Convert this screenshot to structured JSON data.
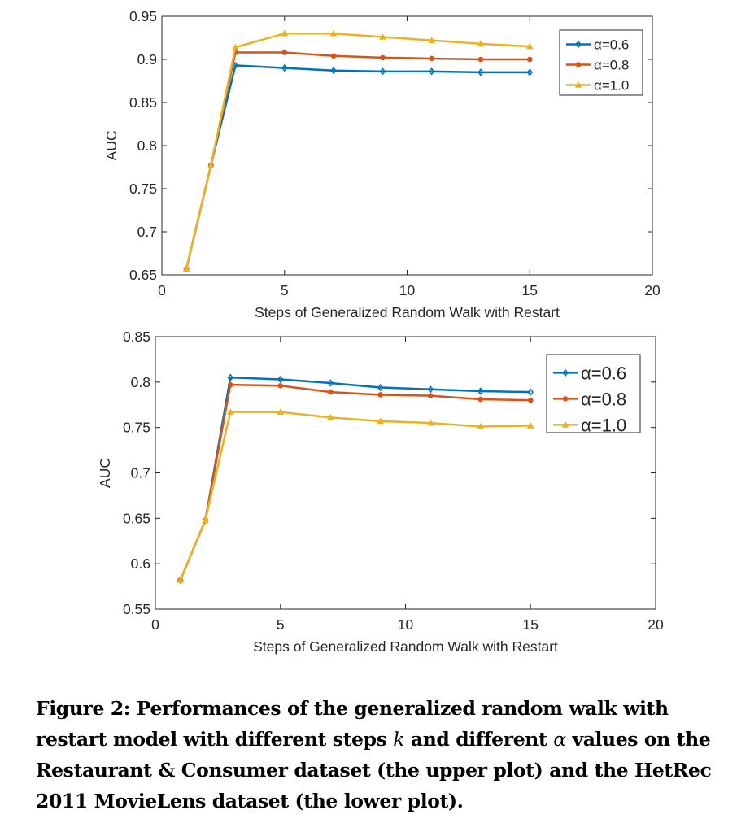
{
  "chart_data": [
    {
      "type": "line",
      "title": "",
      "xlabel": "Steps of Generalized Random Walk with Restart",
      "ylabel": "AUC",
      "xlim": [
        0,
        20
      ],
      "ylim": [
        0.65,
        0.95
      ],
      "xticks": [
        0,
        5,
        10,
        15,
        20
      ],
      "yticks": [
        0.65,
        0.7,
        0.75,
        0.8,
        0.85,
        0.9,
        0.95
      ],
      "ytick_labels": [
        "0.65",
        "0.7",
        "0.75",
        "0.8",
        "0.85",
        "0.9",
        "0.95"
      ],
      "grid": false,
      "legend_position": "top-right",
      "x": [
        1,
        2,
        3,
        5,
        7,
        9,
        11,
        13,
        15
      ],
      "series": [
        {
          "name": "α=0.6",
          "color": "#0072BD",
          "marker": "diamond",
          "values": [
            0.657,
            0.777,
            0.893,
            0.89,
            0.887,
            0.886,
            0.886,
            0.885,
            0.885
          ]
        },
        {
          "name": "α=0.8",
          "color": "#D95319",
          "marker": "circle",
          "values": [
            0.657,
            0.777,
            0.908,
            0.908,
            0.904,
            0.902,
            0.901,
            0.9,
            0.9
          ]
        },
        {
          "name": "α=1.0",
          "color": "#EDB120",
          "marker": "triangle",
          "values": [
            0.657,
            0.777,
            0.914,
            0.93,
            0.93,
            0.926,
            0.922,
            0.918,
            0.915
          ]
        }
      ]
    },
    {
      "type": "line",
      "title": "",
      "xlabel": "Steps of Generalized Random Walk with Restart",
      "ylabel": "AUC",
      "xlim": [
        0,
        20
      ],
      "ylim": [
        0.55,
        0.85
      ],
      "xticks": [
        0,
        5,
        10,
        15,
        20
      ],
      "yticks": [
        0.55,
        0.6,
        0.65,
        0.7,
        0.75,
        0.8,
        0.85
      ],
      "ytick_labels": [
        "0.55",
        "0.6",
        "0.65",
        "0.7",
        "0.75",
        "0.8",
        "0.85"
      ],
      "grid": false,
      "legend_position": "top-right",
      "x": [
        1,
        2,
        3,
        5,
        7,
        9,
        11,
        13,
        15
      ],
      "series": [
        {
          "name": "α=0.6",
          "color": "#0072BD",
          "marker": "diamond",
          "values": [
            0.582,
            0.648,
            0.805,
            0.803,
            0.799,
            0.794,
            0.792,
            0.79,
            0.789
          ]
        },
        {
          "name": "α=0.8",
          "color": "#D95319",
          "marker": "circle",
          "values": [
            0.582,
            0.648,
            0.797,
            0.796,
            0.789,
            0.786,
            0.785,
            0.781,
            0.78
          ]
        },
        {
          "name": "α=1.0",
          "color": "#EDB120",
          "marker": "triangle",
          "values": [
            0.582,
            0.648,
            0.767,
            0.767,
            0.761,
            0.757,
            0.755,
            0.751,
            0.752
          ]
        }
      ]
    }
  ],
  "caption": {
    "label": "Figure 2:",
    "part1": " Performances of the generalized random walk with restart model with different steps ",
    "k": "k",
    "part2": " and different ",
    "alpha": "α",
    "part3": " values on the Restaurant & Consumer dataset (the upper plot) and the HetRec 2011 MovieLens dataset (the lower plot)."
  }
}
